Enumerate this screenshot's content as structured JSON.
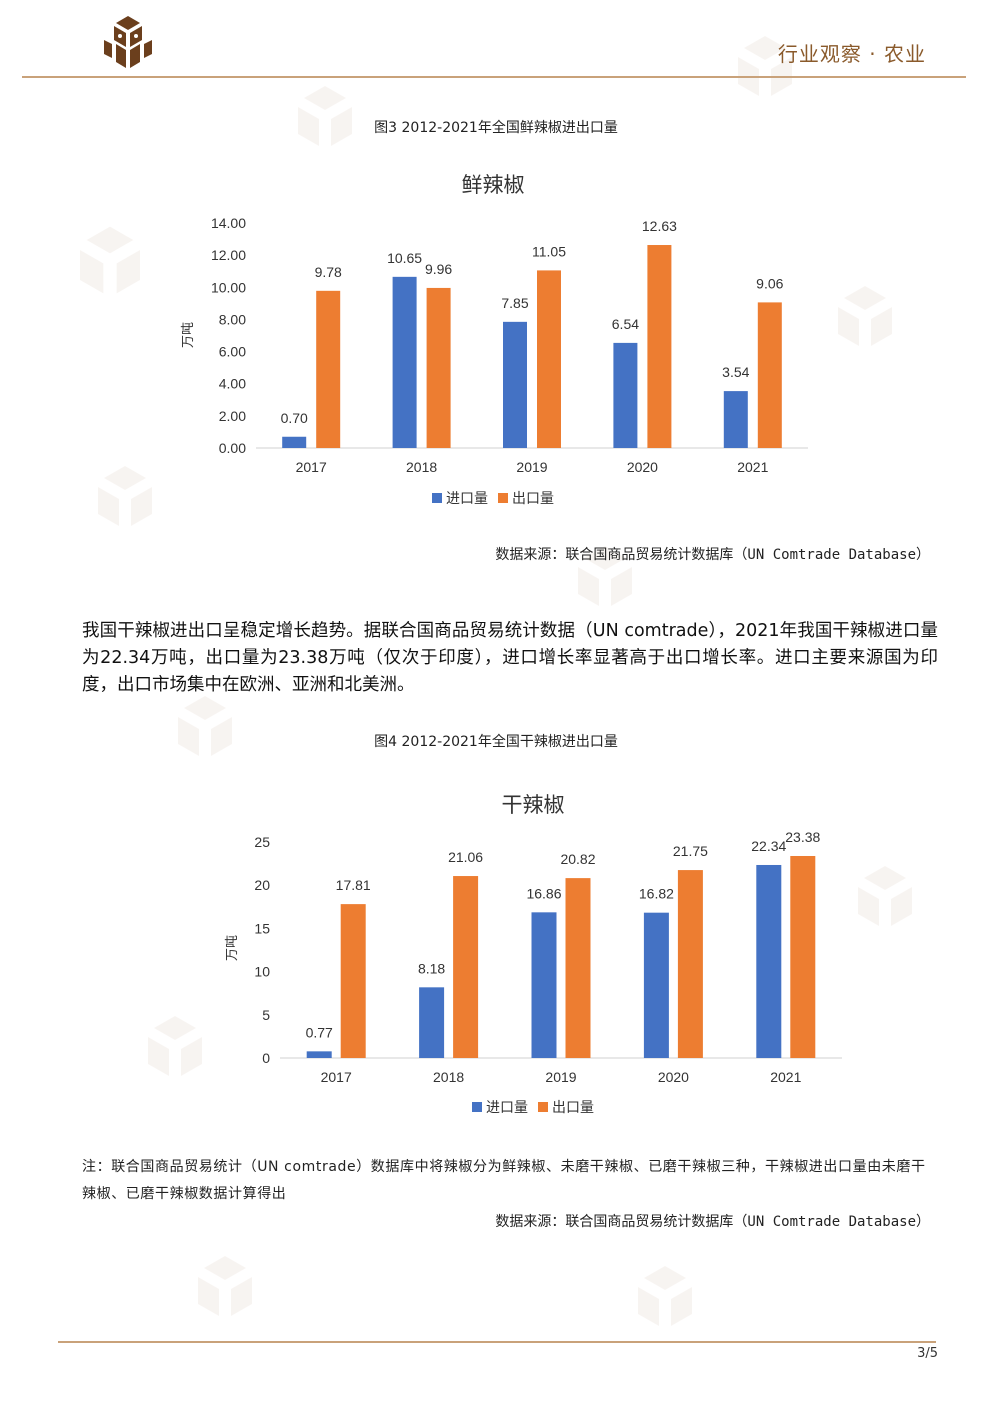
{
  "header": {
    "section_title": "行业观察 · 农业"
  },
  "figure3": {
    "caption": "图3  2012-2021年全国鲜辣椒进出口量",
    "source": "数据来源：联合国商品贸易统计数据库（UN Comtrade Database）"
  },
  "paragraph": "我国干辣椒进出口呈稳定增长趋势。据联合国商品贸易统计数据（UN comtrade），2021年我国干辣椒进口量为22.34万吨，出口量为23.38万吨（仅次于印度），进口增长率显著高于出口增长率。进口主要来源国为印度，出口市场集中在欧洲、亚洲和北美洲。",
  "figure4": {
    "caption": "图4  2012-2021年全国干辣椒进出口量",
    "note": "注：联合国商品贸易统计（UN comtrade）数据库中将辣椒分为鲜辣椒、未磨干辣椒、已磨干辣椒三种，干辣椒进出口量由未磨干辣椒、已磨干辣椒数据计算得出",
    "source": "数据来源：联合国商品贸易统计数据库（UN Comtrade Database）"
  },
  "footer": {
    "page": "3/5"
  },
  "colors": {
    "import": "#4472C4",
    "export": "#ED7D31",
    "brand": "#8a5a2b",
    "rule": "#c9a27a"
  },
  "chart_data": [
    {
      "type": "bar",
      "title": "鲜辣椒",
      "ylabel": "万吨",
      "xlabel": "",
      "categories": [
        "2017",
        "2018",
        "2019",
        "2020",
        "2021"
      ],
      "series": [
        {
          "name": "进口量",
          "values": [
            0.7,
            10.65,
            7.85,
            6.54,
            3.54
          ],
          "labels": [
            "0.70",
            "10.65",
            "7.85",
            "6.54",
            "3.54"
          ]
        },
        {
          "name": "出口量",
          "values": [
            9.78,
            9.96,
            11.05,
            12.63,
            9.06
          ],
          "labels": [
            "9.78",
            "9.96",
            "11.05",
            "12.63",
            "9.06"
          ]
        }
      ],
      "ylim": [
        0,
        14
      ],
      "yticks": [
        "0.00",
        "2.00",
        "4.00",
        "6.00",
        "8.00",
        "10.00",
        "12.00",
        "14.00"
      ],
      "grid": false,
      "legend": "bottom"
    },
    {
      "type": "bar",
      "title": "干辣椒",
      "ylabel": "万吨",
      "xlabel": "",
      "categories": [
        "2017",
        "2018",
        "2019",
        "2020",
        "2021"
      ],
      "series": [
        {
          "name": "进口量",
          "values": [
            0.77,
            8.18,
            16.86,
            16.82,
            22.34
          ],
          "labels": [
            "0.77",
            "8.18",
            "16.86",
            "16.82",
            "22.34"
          ]
        },
        {
          "name": "出口量",
          "values": [
            17.81,
            21.06,
            20.82,
            21.75,
            23.38
          ],
          "labels": [
            "17.81",
            "21.06",
            "20.82",
            "21.75",
            "23.38"
          ]
        }
      ],
      "ylim": [
        0,
        25
      ],
      "yticks": [
        "0",
        "5",
        "10",
        "15",
        "20",
        "25"
      ],
      "grid": false,
      "legend": "bottom"
    }
  ]
}
